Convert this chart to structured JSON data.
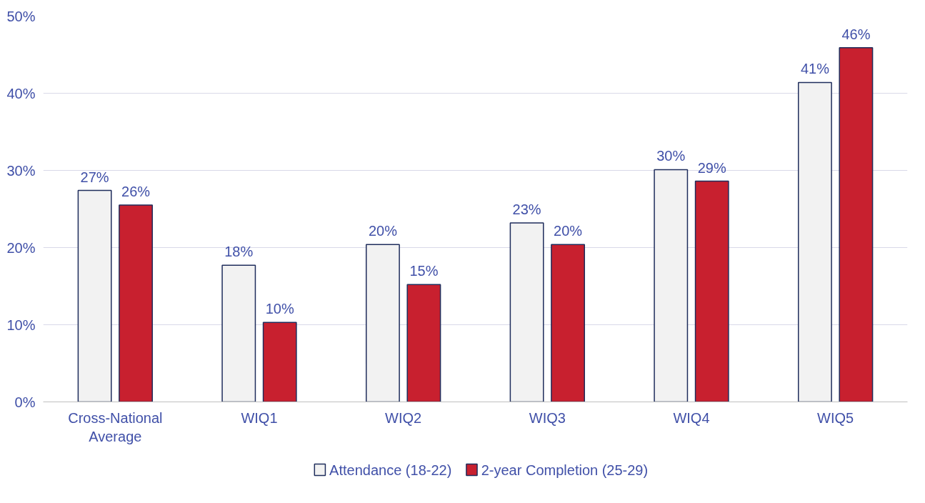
{
  "chart_data": {
    "type": "bar",
    "categories": [
      "Cross-National Average",
      "WIQ1",
      "WIQ2",
      "WIQ3",
      "WIQ4",
      "WIQ5"
    ],
    "series": [
      {
        "name": "Attendance (18-22)",
        "color": "#f2f2f2",
        "values": [
          27.4,
          17.7,
          20.4,
          23.2,
          30.1,
          41.4
        ],
        "value_labels": [
          "27%",
          "18%",
          "20%",
          "23%",
          "30%",
          "41%"
        ]
      },
      {
        "name": "2-year Completion (25-29)",
        "color": "#c8202f",
        "values": [
          25.5,
          10.3,
          15.2,
          20.4,
          28.6,
          45.9
        ],
        "value_labels": [
          "26%",
          "10%",
          "15%",
          "20%",
          "29%",
          "46%"
        ]
      }
    ],
    "ylim": [
      0,
      50
    ],
    "yticks": [
      {
        "value": 0,
        "label": "0%"
      },
      {
        "value": 10,
        "label": "10%"
      },
      {
        "value": 20,
        "label": "20%"
      },
      {
        "value": 30,
        "label": "30%"
      },
      {
        "value": 40,
        "label": "40%"
      },
      {
        "value": 50,
        "label": "50%"
      }
    ],
    "grid": "y",
    "legend": "bottom"
  }
}
